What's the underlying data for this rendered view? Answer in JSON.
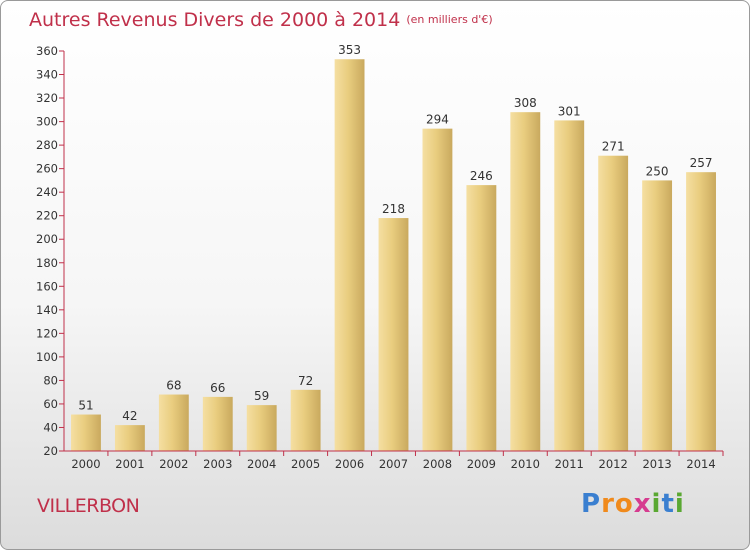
{
  "chart_data": {
    "type": "bar",
    "title": "Autres Revenus Divers de 2000 à 2014",
    "unit_note": "(en milliers d'€)",
    "categories": [
      "2000",
      "2001",
      "2002",
      "2003",
      "2004",
      "2005",
      "2006",
      "2007",
      "2008",
      "2009",
      "2010",
      "2011",
      "2012",
      "2013",
      "2014"
    ],
    "values": [
      51,
      42,
      68,
      66,
      59,
      72,
      353,
      218,
      294,
      246,
      308,
      301,
      271,
      250,
      257
    ],
    "ylim": [
      20,
      360
    ],
    "yticks": [
      20,
      40,
      60,
      80,
      100,
      120,
      140,
      160,
      180,
      200,
      220,
      240,
      260,
      280,
      300,
      320,
      340,
      360
    ],
    "grid": false,
    "bar_color": "#e9cd7f",
    "bar_color_light": "#f5dfa2",
    "bar_color_dark": "#c9a95e",
    "axis_color": "#c0304a"
  },
  "location": "VILLERBON",
  "brand": {
    "letters": [
      "P",
      "r",
      "o",
      "x",
      "i",
      "t",
      "i"
    ],
    "colors": [
      "#3a7fd0",
      "#f08a1c",
      "#f08a1c",
      "#d63b8f",
      "#5aa832",
      "#3a7fd0",
      "#5aa832"
    ]
  }
}
